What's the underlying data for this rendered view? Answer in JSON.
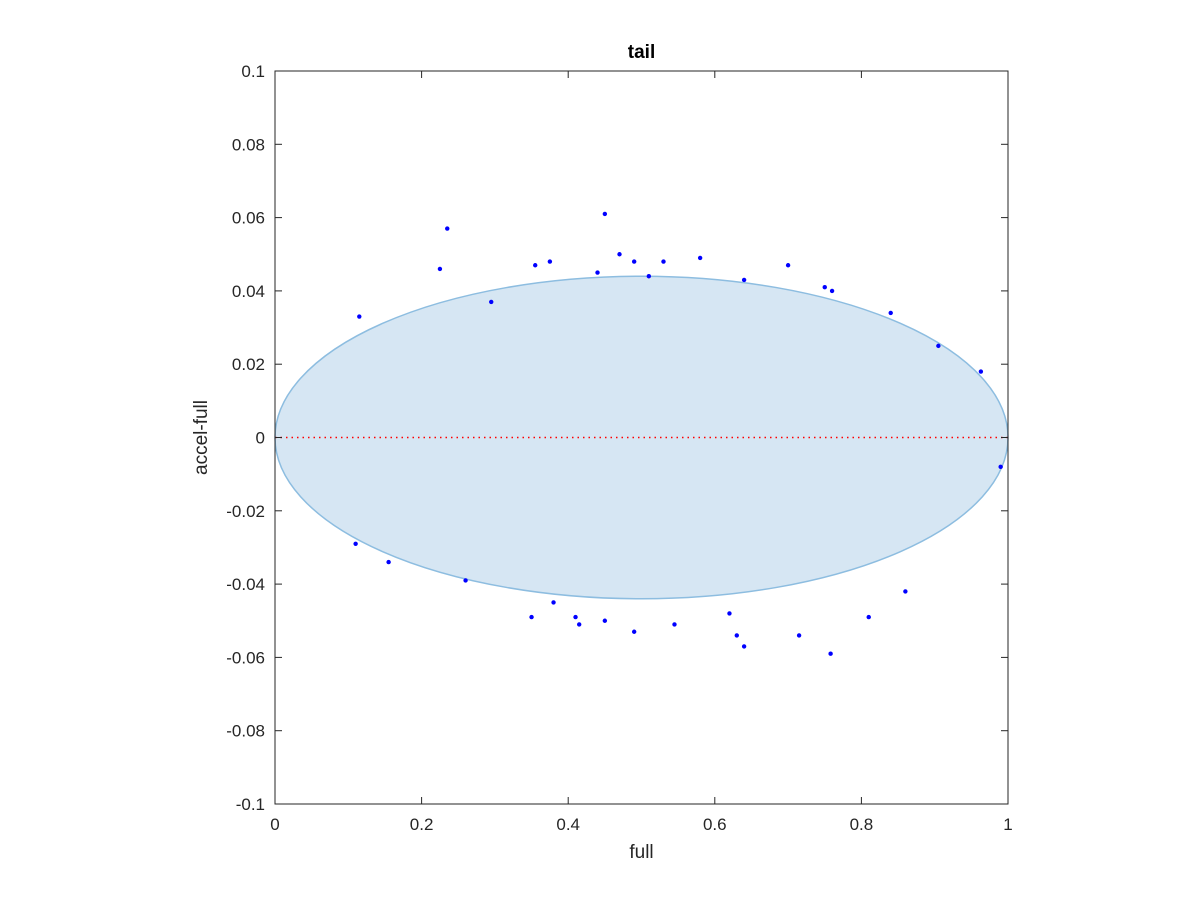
{
  "chart_data": {
    "type": "scatter",
    "title": "tail",
    "xlabel": "full",
    "ylabel": "accel-full",
    "xlim": [
      0,
      1
    ],
    "ylim": [
      -0.1,
      0.1
    ],
    "grid": false,
    "xticks": [
      0,
      0.2,
      0.4,
      0.6,
      0.8,
      1
    ],
    "xtick_labels": [
      "0",
      "0.2",
      "0.4",
      "0.6",
      "0.8",
      "1"
    ],
    "yticks": [
      0.1,
      0.08,
      0.06,
      0.04,
      0.02,
      0,
      -0.02,
      -0.04,
      -0.06,
      -0.08,
      -0.1
    ],
    "ytick_labels": [
      "0.1",
      "0.08",
      "0.06",
      "0.04",
      "0.02",
      "0",
      "-0.02",
      "-0.04",
      "-0.06",
      "-0.08",
      "-0.1"
    ],
    "point_color": "#0000ff",
    "region": {
      "shape": "ellipse",
      "center": [
        0.5,
        0
      ],
      "x_half_width": 0.5,
      "y_half_height": 0.044,
      "fill": "#d6e6f3",
      "stroke": "#8dbde0"
    },
    "reference_line": {
      "y": 0,
      "style": "dotted",
      "color": "#ff0000"
    },
    "series": [
      {
        "points": [
          [
            0.45,
            0.061
          ],
          [
            0.235,
            0.057
          ],
          [
            0.47,
            0.05
          ],
          [
            0.58,
            0.049
          ],
          [
            0.49,
            0.048
          ],
          [
            0.375,
            0.048
          ],
          [
            0.53,
            0.048
          ],
          [
            0.7,
            0.047
          ],
          [
            0.355,
            0.047
          ],
          [
            0.225,
            0.046
          ],
          [
            0.44,
            0.045
          ],
          [
            0.51,
            0.044
          ],
          [
            0.76,
            0.04
          ],
          [
            0.75,
            0.041
          ],
          [
            0.84,
            0.034
          ],
          [
            0.38,
            -0.045
          ],
          [
            0.45,
            -0.05
          ],
          [
            0.49,
            -0.053
          ],
          [
            0.545,
            -0.051
          ],
          [
            0.62,
            -0.048
          ],
          [
            0.63,
            -0.054
          ],
          [
            0.64,
            -0.057
          ],
          [
            0.715,
            -0.054
          ],
          [
            0.758,
            -0.059
          ],
          [
            0.41,
            -0.049
          ],
          [
            0.35,
            -0.049
          ],
          [
            0.415,
            -0.051
          ],
          [
            0.86,
            -0.042
          ],
          [
            0.81,
            -0.049
          ],
          [
            0.26,
            -0.039
          ],
          [
            0.155,
            -0.034
          ],
          [
            0.11,
            -0.029
          ],
          [
            0.115,
            0.033
          ],
          [
            0.905,
            0.025
          ],
          [
            0.99,
            -0.008
          ],
          [
            0.963,
            0.018
          ],
          [
            0.295,
            0.037
          ],
          [
            0.64,
            0.043
          ]
        ]
      }
    ]
  }
}
